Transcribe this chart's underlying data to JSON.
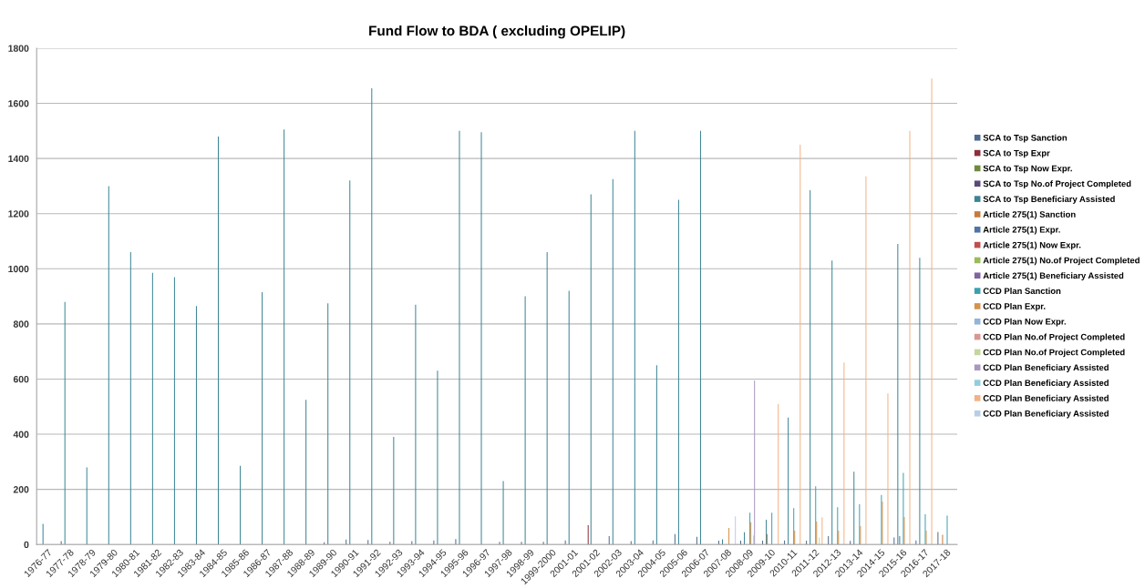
{
  "chart_data": {
    "type": "bar",
    "title": "Fund Flow to BDA ( excluding OPELIP)",
    "categories": [
      "1976-77",
      "1977-78",
      "1978-79",
      "1979-80",
      "1980-81",
      "1981-82",
      "1982-83",
      "1983-84",
      "1984-85",
      "1985-86",
      "1986-87",
      "1987-88",
      "1988-89",
      "1989-90",
      "1990-91",
      "1991-92",
      "1992-93",
      "1993-94",
      "1994-95",
      "1995-96",
      "1996-97",
      "1997-98",
      "1998-99",
      "1999-2000",
      "2001-01",
      "2001-02",
      "2002-03",
      "2003-04",
      "2004-05",
      "2005-06",
      "2006-07",
      "2007-08",
      "2008-09",
      "2009-10",
      "2010-11",
      "2011-12",
      "2012-13",
      "2013-14",
      "2014-15",
      "2015-16",
      "2016-17",
      "2017-18"
    ],
    "series": [
      {
        "name": "SCA to Tsp Sanction",
        "color": "#4f6a8f",
        "values": [
          null,
          12,
          null,
          null,
          null,
          null,
          null,
          null,
          null,
          null,
          null,
          null,
          null,
          8,
          18,
          16,
          10,
          12,
          15,
          20,
          null,
          10,
          10,
          10,
          15,
          null,
          30,
          12,
          15,
          38,
          28,
          14,
          14,
          14,
          15,
          14,
          30,
          13,
          null,
          25,
          15,
          45
        ]
      },
      {
        "name": "SCA to Tsp Expr",
        "color": "#8b2f3a",
        "values": [
          null,
          null,
          null,
          null,
          null,
          null,
          null,
          null,
          null,
          null,
          null,
          null,
          null,
          null,
          null,
          null,
          null,
          null,
          null,
          null,
          null,
          null,
          null,
          null,
          null,
          70,
          null,
          null,
          null,
          null,
          null,
          null,
          null,
          null,
          null,
          null,
          null,
          null,
          null,
          null,
          null,
          null
        ]
      },
      {
        "name": "SCA to Tsp Now Expr.",
        "color": "#6f8a3c",
        "values": [
          null,
          null,
          null,
          null,
          null,
          null,
          null,
          null,
          null,
          null,
          null,
          null,
          null,
          null,
          null,
          null,
          null,
          null,
          null,
          null,
          null,
          null,
          null,
          null,
          null,
          null,
          null,
          null,
          null,
          null,
          null,
          null,
          null,
          null,
          null,
          null,
          null,
          null,
          null,
          null,
          null,
          null
        ]
      },
      {
        "name": "SCA to Tsp No.of Project Completed",
        "color": "#5a4a7a",
        "values": [
          null,
          null,
          null,
          null,
          null,
          null,
          null,
          null,
          null,
          null,
          null,
          null,
          null,
          null,
          null,
          null,
          null,
          null,
          null,
          null,
          null,
          null,
          null,
          null,
          null,
          null,
          null,
          null,
          null,
          null,
          null,
          null,
          null,
          null,
          null,
          null,
          null,
          null,
          null,
          null,
          null,
          null
        ]
      },
      {
        "name": "SCA to Tsp Beneficiary Assisted",
        "color": "#3a8494",
        "values": [
          75,
          880,
          280,
          1300,
          1060,
          985,
          970,
          865,
          1480,
          285,
          915,
          1505,
          525,
          875,
          1320,
          1655,
          390,
          870,
          630,
          1500,
          1495,
          230,
          900,
          1060,
          920,
          1270,
          1325,
          1500,
          650,
          1250,
          1500,
          19,
          44,
          90,
          460,
          1285,
          1030,
          264,
          null,
          1090,
          1040,
          null
        ]
      },
      {
        "name": "Article 275(1) Sanction",
        "color": "#c87a3a",
        "values": [
          null,
          null,
          null,
          null,
          null,
          null,
          null,
          null,
          null,
          null,
          null,
          null,
          null,
          null,
          null,
          null,
          null,
          null,
          null,
          null,
          null,
          null,
          null,
          null,
          null,
          null,
          null,
          null,
          null,
          null,
          null,
          null,
          null,
          38,
          null,
          null,
          null,
          null,
          null,
          null,
          null,
          35
        ]
      },
      {
        "name": "Article 275(1) Expr.",
        "color": "#4f74a6",
        "values": [
          null,
          null,
          null,
          null,
          null,
          null,
          null,
          null,
          null,
          null,
          null,
          null,
          null,
          null,
          null,
          null,
          null,
          null,
          null,
          null,
          null,
          null,
          null,
          null,
          null,
          null,
          null,
          null,
          null,
          null,
          null,
          null,
          null,
          null,
          null,
          null,
          null,
          null,
          null,
          30,
          null,
          null
        ]
      },
      {
        "name": "Article 275(1) Now Expr.",
        "color": "#c0504d",
        "values": [
          null,
          null,
          null,
          null,
          null,
          null,
          null,
          null,
          null,
          null,
          null,
          null,
          null,
          null,
          null,
          null,
          null,
          null,
          null,
          null,
          null,
          null,
          null,
          null,
          null,
          null,
          null,
          null,
          null,
          null,
          null,
          null,
          null,
          null,
          null,
          null,
          null,
          null,
          null,
          null,
          null,
          null
        ]
      },
      {
        "name": "Article 275(1) No.of Project Completed",
        "color": "#9bbb59",
        "values": [
          null,
          null,
          null,
          null,
          null,
          null,
          null,
          null,
          null,
          null,
          null,
          null,
          null,
          null,
          null,
          null,
          null,
          null,
          null,
          null,
          null,
          null,
          null,
          null,
          null,
          null,
          null,
          null,
          null,
          null,
          null,
          null,
          null,
          null,
          null,
          null,
          null,
          null,
          null,
          null,
          null,
          null
        ]
      },
      {
        "name": "Article 275(1) Beneficiary Assisted",
        "color": "#8064a2",
        "values": [
          null,
          null,
          null,
          null,
          null,
          null,
          null,
          null,
          null,
          null,
          null,
          null,
          null,
          null,
          null,
          null,
          null,
          null,
          null,
          null,
          null,
          null,
          null,
          null,
          null,
          null,
          null,
          null,
          null,
          null,
          null,
          null,
          null,
          null,
          null,
          null,
          null,
          null,
          null,
          null,
          null,
          null
        ]
      },
      {
        "name": "CCD Plan Sanction",
        "color": "#3aa0b0",
        "values": [
          null,
          null,
          null,
          null,
          null,
          null,
          null,
          null,
          null,
          null,
          null,
          null,
          null,
          null,
          null,
          null,
          null,
          null,
          null,
          null,
          null,
          null,
          null,
          null,
          null,
          null,
          null,
          null,
          null,
          null,
          null,
          null,
          115,
          115,
          132,
          211,
          135,
          146,
          180,
          260,
          110,
          105
        ]
      },
      {
        "name": "CCD Plan Expr.",
        "color": "#d4924a",
        "values": [
          null,
          null,
          null,
          null,
          null,
          null,
          null,
          null,
          null,
          null,
          null,
          null,
          null,
          null,
          null,
          null,
          null,
          null,
          null,
          null,
          null,
          null,
          null,
          null,
          null,
          null,
          null,
          null,
          null,
          null,
          null,
          60,
          81,
          null,
          50,
          83,
          50,
          67,
          156,
          100,
          50,
          null
        ]
      },
      {
        "name": "CCD Plan Now Expr.",
        "color": "#95b3d7",
        "values": [
          null,
          null,
          null,
          null,
          null,
          null,
          null,
          null,
          null,
          null,
          null,
          null,
          null,
          null,
          null,
          null,
          null,
          null,
          null,
          null,
          null,
          null,
          null,
          null,
          null,
          null,
          null,
          null,
          null,
          null,
          null,
          null,
          null,
          null,
          null,
          null,
          null,
          null,
          null,
          null,
          null,
          null
        ]
      },
      {
        "name": "CCD Plan No.of Project Completed",
        "color": "#d99694",
        "values": [
          null,
          null,
          null,
          null,
          null,
          null,
          null,
          null,
          null,
          null,
          null,
          null,
          null,
          null,
          null,
          null,
          null,
          null,
          null,
          null,
          null,
          null,
          null,
          null,
          null,
          null,
          null,
          null,
          null,
          null,
          null,
          null,
          null,
          null,
          null,
          null,
          null,
          null,
          null,
          null,
          null,
          null
        ]
      },
      {
        "name": "CCD Plan No.of Project Completed",
        "color": "#c3d69b",
        "values": [
          null,
          null,
          null,
          null,
          null,
          null,
          null,
          null,
          null,
          null,
          null,
          null,
          null,
          null,
          null,
          null,
          null,
          null,
          null,
          null,
          null,
          null,
          null,
          null,
          null,
          null,
          null,
          null,
          null,
          null,
          null,
          null,
          33,
          null,
          null,
          25,
          null,
          null,
          null,
          null,
          null,
          null
        ]
      },
      {
        "name": "CCD Plan Beneficiary Assisted",
        "color": "#a898bf",
        "values": [
          null,
          null,
          null,
          null,
          null,
          null,
          null,
          null,
          null,
          null,
          null,
          null,
          null,
          null,
          null,
          null,
          null,
          null,
          null,
          null,
          null,
          null,
          null,
          null,
          null,
          null,
          null,
          null,
          null,
          null,
          null,
          null,
          595,
          null,
          null,
          null,
          null,
          null,
          null,
          null,
          null,
          null
        ]
      },
      {
        "name": "CCD Plan Beneficiary Assisted",
        "color": "#93cddd",
        "values": [
          null,
          null,
          null,
          null,
          null,
          null,
          null,
          null,
          null,
          null,
          null,
          null,
          null,
          null,
          null,
          null,
          null,
          null,
          null,
          null,
          null,
          null,
          null,
          null,
          null,
          null,
          null,
          null,
          null,
          null,
          null,
          null,
          null,
          null,
          null,
          null,
          null,
          null,
          null,
          null,
          null,
          null
        ]
      },
      {
        "name": "CCD Plan Beneficiary Assisted",
        "color": "#f4b183",
        "values": [
          null,
          null,
          null,
          null,
          null,
          null,
          null,
          null,
          null,
          null,
          null,
          null,
          null,
          null,
          null,
          null,
          null,
          null,
          null,
          null,
          null,
          null,
          null,
          null,
          null,
          null,
          null,
          null,
          null,
          null,
          null,
          null,
          null,
          510,
          1450,
          99,
          660,
          1335,
          548,
          1500,
          1690,
          null
        ]
      },
      {
        "name": "CCD Plan Beneficiary Assisted",
        "color": "#b9cde5",
        "values": [
          null,
          null,
          null,
          null,
          null,
          null,
          null,
          null,
          null,
          null,
          null,
          null,
          null,
          null,
          null,
          null,
          null,
          null,
          null,
          null,
          null,
          null,
          null,
          null,
          null,
          null,
          null,
          null,
          null,
          null,
          null,
          102,
          null,
          null,
          null,
          null,
          null,
          null,
          null,
          null,
          null,
          null
        ]
      }
    ],
    "ylim": [
      0,
      1800
    ],
    "yticks": [
      0,
      200,
      400,
      600,
      800,
      1000,
      1200,
      1400,
      1600,
      1800
    ],
    "grid": "y",
    "legend": "right"
  }
}
